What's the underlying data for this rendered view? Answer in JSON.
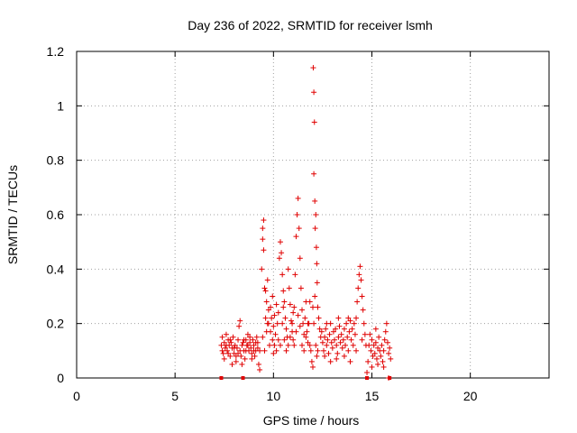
{
  "chart_data": {
    "type": "scatter",
    "title": "Day 236 of 2022, SRMTID for receiver lsmh",
    "xlabel": "GPS time / hours",
    "ylabel": "SRMTID / TECUs",
    "xlim": [
      0,
      24
    ],
    "ylim": [
      0,
      1.2
    ],
    "x_ticks": [
      0,
      5,
      10,
      15,
      20
    ],
    "y_ticks": [
      0,
      0.2,
      0.4,
      0.6,
      0.8,
      1,
      1.2
    ],
    "x_tick_labels": [
      "0",
      "5",
      "10",
      "15",
      "20"
    ],
    "y_tick_labels": [
      "0",
      "0.2",
      "0.4",
      "0.6",
      "0.8",
      "1",
      "1.2"
    ],
    "grid": true,
    "marker": "plus",
    "color": "#e00000",
    "series": [
      {
        "name": "SRMTID",
        "points": [
          [
            7.35,
            0.12
          ],
          [
            7.4,
            0.15
          ],
          [
            7.45,
            0.09
          ],
          [
            7.5,
            0.13
          ],
          [
            7.55,
            0.11
          ],
          [
            7.6,
            0.16
          ],
          [
            7.65,
            0.1
          ],
          [
            7.7,
            0.14
          ],
          [
            7.75,
            0.12
          ],
          [
            7.8,
            0.08
          ],
          [
            7.85,
            0.13
          ],
          [
            7.9,
            0.11
          ],
          [
            7.95,
            0.15
          ],
          [
            8.0,
            0.09
          ],
          [
            8.05,
            0.12
          ],
          [
            8.1,
            0.06
          ],
          [
            8.15,
            0.11
          ],
          [
            8.2,
            0.14
          ],
          [
            8.25,
            0.19
          ],
          [
            8.3,
            0.21
          ],
          [
            8.35,
            0.08
          ],
          [
            8.4,
            0.05
          ],
          [
            8.45,
            0.13
          ],
          [
            8.5,
            0.1
          ],
          [
            8.55,
            0.07
          ],
          [
            8.6,
            0.14
          ],
          [
            8.65,
            0.12
          ],
          [
            8.7,
            0.16
          ],
          [
            8.75,
            0.1
          ],
          [
            8.8,
            0.13
          ],
          [
            8.85,
            0.11
          ],
          [
            8.9,
            0.09
          ],
          [
            8.95,
            0.14
          ],
          [
            9.0,
            0.12
          ],
          [
            9.05,
            0.08
          ],
          [
            9.1,
            0.13
          ],
          [
            9.15,
            0.15
          ],
          [
            9.2,
            0.11
          ],
          [
            9.25,
            0.05
          ],
          [
            9.3,
            0.1
          ],
          [
            7.4,
            0.1
          ],
          [
            7.6,
            0.12
          ],
          [
            7.8,
            0.14
          ],
          [
            8.0,
            0.11
          ],
          [
            8.2,
            0.09
          ],
          [
            8.4,
            0.12
          ],
          [
            8.6,
            0.1
          ],
          [
            8.8,
            0.15
          ],
          [
            9.0,
            0.1
          ],
          [
            9.2,
            0.13
          ],
          [
            7.5,
            0.07
          ],
          [
            7.7,
            0.09
          ],
          [
            7.9,
            0.05
          ],
          [
            8.1,
            0.08
          ],
          [
            8.3,
            0.1
          ],
          [
            8.5,
            0.14
          ],
          [
            8.7,
            0.12
          ],
          [
            8.9,
            0.07
          ],
          [
            9.1,
            0.1
          ],
          [
            9.3,
            0.03
          ],
          [
            9.4,
            0.4
          ],
          [
            9.45,
            0.55
          ],
          [
            9.5,
            0.58
          ],
          [
            9.5,
            0.47
          ],
          [
            9.45,
            0.51
          ],
          [
            9.55,
            0.33
          ],
          [
            9.6,
            0.22
          ],
          [
            9.65,
            0.28
          ],
          [
            9.7,
            0.2
          ],
          [
            9.75,
            0.25
          ],
          [
            9.8,
            0.12
          ],
          [
            9.85,
            0.17
          ],
          [
            9.9,
            0.22
          ],
          [
            9.95,
            0.14
          ],
          [
            10.0,
            0.19
          ],
          [
            10.05,
            0.23
          ],
          [
            10.1,
            0.16
          ],
          [
            10.15,
            0.27
          ],
          [
            10.2,
            0.2
          ],
          [
            10.25,
            0.24
          ],
          [
            10.3,
            0.44
          ],
          [
            10.35,
            0.5
          ],
          [
            10.4,
            0.46
          ],
          [
            10.45,
            0.38
          ],
          [
            10.5,
            0.32
          ],
          [
            10.55,
            0.28
          ],
          [
            10.6,
            0.22
          ],
          [
            10.65,
            0.18
          ],
          [
            10.7,
            0.15
          ],
          [
            10.75,
            0.4
          ],
          [
            10.8,
            0.33
          ],
          [
            10.85,
            0.27
          ],
          [
            10.9,
            0.21
          ],
          [
            10.95,
            0.17
          ],
          [
            11.0,
            0.14
          ],
          [
            11.05,
            0.26
          ],
          [
            11.1,
            0.38
          ],
          [
            11.15,
            0.52
          ],
          [
            11.2,
            0.6
          ],
          [
            11.25,
            0.66
          ],
          [
            11.3,
            0.55
          ],
          [
            11.35,
            0.44
          ],
          [
            11.4,
            0.33
          ],
          [
            11.45,
            0.25
          ],
          [
            11.5,
            0.2
          ],
          [
            11.55,
            0.16
          ],
          [
            11.6,
            0.22
          ],
          [
            11.65,
            0.28
          ],
          [
            11.7,
            0.17
          ],
          [
            11.75,
            0.13
          ],
          [
            11.8,
            0.2
          ],
          [
            11.85,
            0.28
          ],
          [
            11.9,
            0.1
          ],
          [
            11.95,
            0.06
          ],
          [
            12.0,
            0.04
          ],
          [
            9.45,
            0.15
          ],
          [
            9.55,
            0.1
          ],
          [
            9.65,
            0.17
          ],
          [
            9.75,
            0.2
          ],
          [
            9.85,
            0.26
          ],
          [
            9.95,
            0.3
          ],
          [
            10.05,
            0.12
          ],
          [
            10.15,
            0.1
          ],
          [
            10.25,
            0.14
          ],
          [
            10.35,
            0.12
          ],
          [
            10.45,
            0.2
          ],
          [
            10.55,
            0.14
          ],
          [
            10.65,
            0.1
          ],
          [
            10.75,
            0.12
          ],
          [
            10.85,
            0.15
          ],
          [
            10.95,
            0.2
          ],
          [
            11.05,
            0.12
          ],
          [
            11.15,
            0.17
          ],
          [
            11.25,
            0.23
          ],
          [
            11.35,
            0.19
          ],
          [
            11.45,
            0.12
          ],
          [
            11.55,
            0.1
          ],
          [
            11.65,
            0.15
          ],
          [
            11.75,
            0.2
          ],
          [
            11.85,
            0.12
          ],
          [
            9.6,
            0.32
          ],
          [
            9.7,
            0.36
          ],
          [
            10.0,
            0.09
          ],
          [
            10.5,
            0.26
          ],
          [
            11.0,
            0.24
          ],
          [
            12.02,
            1.14
          ],
          [
            12.05,
            1.05
          ],
          [
            12.08,
            0.94
          ],
          [
            12.05,
            0.75
          ],
          [
            12.1,
            0.65
          ],
          [
            12.15,
            0.6
          ],
          [
            12.12,
            0.55
          ],
          [
            12.18,
            0.48
          ],
          [
            12.2,
            0.42
          ],
          [
            12.22,
            0.35
          ],
          [
            12.1,
            0.3
          ],
          [
            12.25,
            0.26
          ],
          [
            12.3,
            0.22
          ],
          [
            12.35,
            0.18
          ],
          [
            12.4,
            0.15
          ],
          [
            12.05,
            0.2
          ],
          [
            12.15,
            0.12
          ],
          [
            12.25,
            0.1
          ],
          [
            12.0,
            0.26
          ],
          [
            12.2,
            0.08
          ],
          [
            12.45,
            0.17
          ],
          [
            12.5,
            0.13
          ],
          [
            12.55,
            0.1
          ],
          [
            12.6,
            0.15
          ],
          [
            12.65,
            0.18
          ],
          [
            12.7,
            0.12
          ],
          [
            12.75,
            0.14
          ],
          [
            12.8,
            0.09
          ],
          [
            12.85,
            0.16
          ],
          [
            12.9,
            0.2
          ],
          [
            12.95,
            0.13
          ],
          [
            13.0,
            0.11
          ],
          [
            13.05,
            0.17
          ],
          [
            13.1,
            0.14
          ],
          [
            13.15,
            0.18
          ],
          [
            13.2,
            0.12
          ],
          [
            13.25,
            0.09
          ],
          [
            13.3,
            0.15
          ],
          [
            13.35,
            0.19
          ],
          [
            13.4,
            0.13
          ],
          [
            13.45,
            0.16
          ],
          [
            13.5,
            0.11
          ],
          [
            13.55,
            0.14
          ],
          [
            13.6,
            0.18
          ],
          [
            13.65,
            0.12
          ],
          [
            13.7,
            0.2
          ],
          [
            13.75,
            0.15
          ],
          [
            13.8,
            0.1
          ],
          [
            13.85,
            0.17
          ],
          [
            13.9,
            0.21
          ],
          [
            13.95,
            0.14
          ],
          [
            14.0,
            0.18
          ],
          [
            14.05,
            0.12
          ],
          [
            14.1,
            0.2
          ],
          [
            14.15,
            0.16
          ],
          [
            14.2,
            0.22
          ],
          [
            14.25,
            0.28
          ],
          [
            14.3,
            0.33
          ],
          [
            14.35,
            0.38
          ],
          [
            14.4,
            0.41
          ],
          [
            14.45,
            0.36
          ],
          [
            14.5,
            0.3
          ],
          [
            14.55,
            0.25
          ],
          [
            14.6,
            0.2
          ],
          [
            14.65,
            0.16
          ],
          [
            14.7,
            0.12
          ],
          [
            12.6,
            0.08
          ],
          [
            12.9,
            0.06
          ],
          [
            13.2,
            0.07
          ],
          [
            13.6,
            0.08
          ],
          [
            13.9,
            0.06
          ],
          [
            14.2,
            0.1
          ],
          [
            14.5,
            0.14
          ],
          [
            12.7,
            0.2
          ],
          [
            13.3,
            0.22
          ],
          [
            13.8,
            0.22
          ],
          [
            14.75,
            0.02
          ],
          [
            14.8,
            0.06
          ],
          [
            14.85,
            0.12
          ],
          [
            14.9,
            0.16
          ],
          [
            14.95,
            0.1
          ],
          [
            15.0,
            0.14
          ],
          [
            15.05,
            0.08
          ],
          [
            15.1,
            0.12
          ],
          [
            15.15,
            0.09
          ],
          [
            15.2,
            0.13
          ],
          [
            15.25,
            0.07
          ],
          [
            15.3,
            0.11
          ],
          [
            15.35,
            0.15
          ],
          [
            15.4,
            0.1
          ],
          [
            15.45,
            0.08
          ],
          [
            15.5,
            0.12
          ],
          [
            15.55,
            0.06
          ],
          [
            15.6,
            0.1
          ],
          [
            15.65,
            0.14
          ],
          [
            15.7,
            0.17
          ],
          [
            15.75,
            0.2
          ],
          [
            15.8,
            0.13
          ],
          [
            15.85,
            0.09
          ],
          [
            15.9,
            0.11
          ],
          [
            15.95,
            0.07
          ],
          [
            15.85,
            0.0
          ],
          [
            15.0,
            0.04
          ],
          [
            15.3,
            0.05
          ],
          [
            15.6,
            0.04
          ],
          [
            15.2,
            0.18
          ]
        ]
      }
    ],
    "zero_markers": [
      7.35,
      8.45,
      14.75,
      15.9
    ]
  }
}
